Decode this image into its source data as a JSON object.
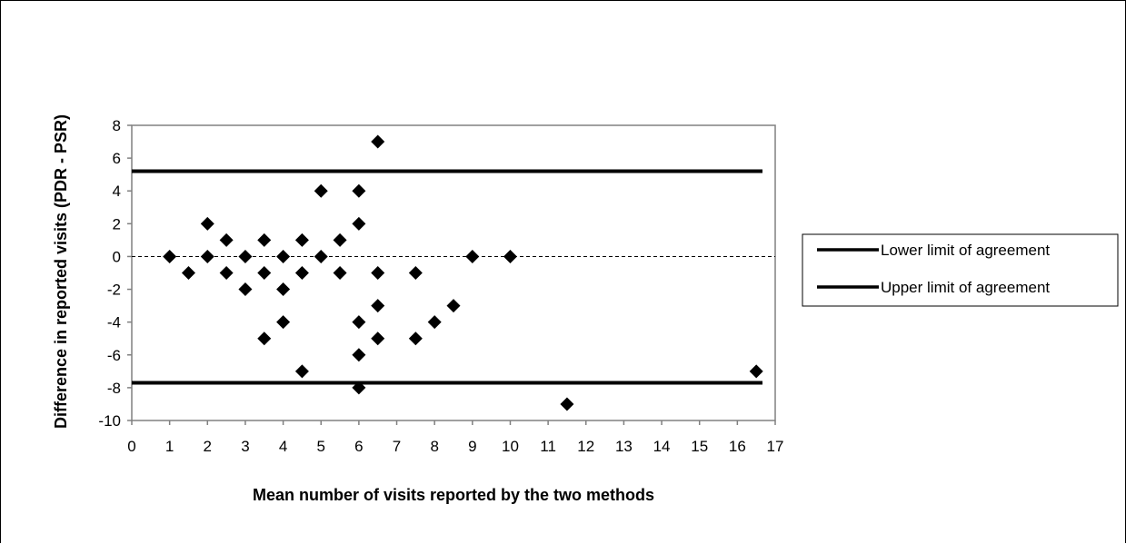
{
  "chart_data": {
    "type": "scatter",
    "title": "",
    "xlabel": "Mean number of visits reported by the two methods",
    "ylabel": "Difference in reported visits (PDR - PSR)",
    "xlim": [
      0,
      17
    ],
    "ylim": [
      -10,
      8
    ],
    "x_ticks": [
      "0",
      "1",
      "2",
      "3",
      "4",
      "5",
      "6",
      "7",
      "8",
      "9",
      "10",
      "11",
      "12",
      "13",
      "14",
      "15",
      "16",
      "17"
    ],
    "y_ticks": [
      "8",
      "6",
      "4",
      "2",
      "0",
      "-2",
      "-4",
      "-6",
      "-8",
      "-10"
    ],
    "grid": false,
    "legend_position": "right",
    "zero_line": {
      "y": 0,
      "style": "dashed"
    },
    "reference_lines": [
      {
        "name": "Lower limit of agreement",
        "y": -7.7
      },
      {
        "name": "Upper limit of agreement",
        "y": 5.2
      }
    ],
    "points": [
      [
        1,
        0
      ],
      [
        1.5,
        -1
      ],
      [
        2,
        2
      ],
      [
        2,
        0
      ],
      [
        2.5,
        1
      ],
      [
        2.5,
        -1
      ],
      [
        3,
        0
      ],
      [
        3,
        -2
      ],
      [
        3.5,
        1
      ],
      [
        3.5,
        -1
      ],
      [
        3.5,
        -5
      ],
      [
        4,
        0
      ],
      [
        4,
        -2
      ],
      [
        4,
        -4
      ],
      [
        4.5,
        1
      ],
      [
        4.5,
        -1
      ],
      [
        4.5,
        -7
      ],
      [
        5,
        4
      ],
      [
        5,
        0
      ],
      [
        5.5,
        1
      ],
      [
        5.5,
        -1
      ],
      [
        6,
        4
      ],
      [
        6,
        2
      ],
      [
        6,
        -4
      ],
      [
        6,
        -6
      ],
      [
        6,
        -8
      ],
      [
        6.5,
        7
      ],
      [
        6.5,
        -1
      ],
      [
        6.5,
        -3
      ],
      [
        6.5,
        -5
      ],
      [
        7.5,
        -1
      ],
      [
        7.5,
        -5
      ],
      [
        8,
        -4
      ],
      [
        8.5,
        -3
      ],
      [
        9,
        0
      ],
      [
        10,
        0
      ],
      [
        11.5,
        -9
      ],
      [
        16.5,
        -7
      ]
    ],
    "colors": {
      "marker": "#000000",
      "limit_line": "#000000",
      "zero_line": "#000000"
    }
  }
}
